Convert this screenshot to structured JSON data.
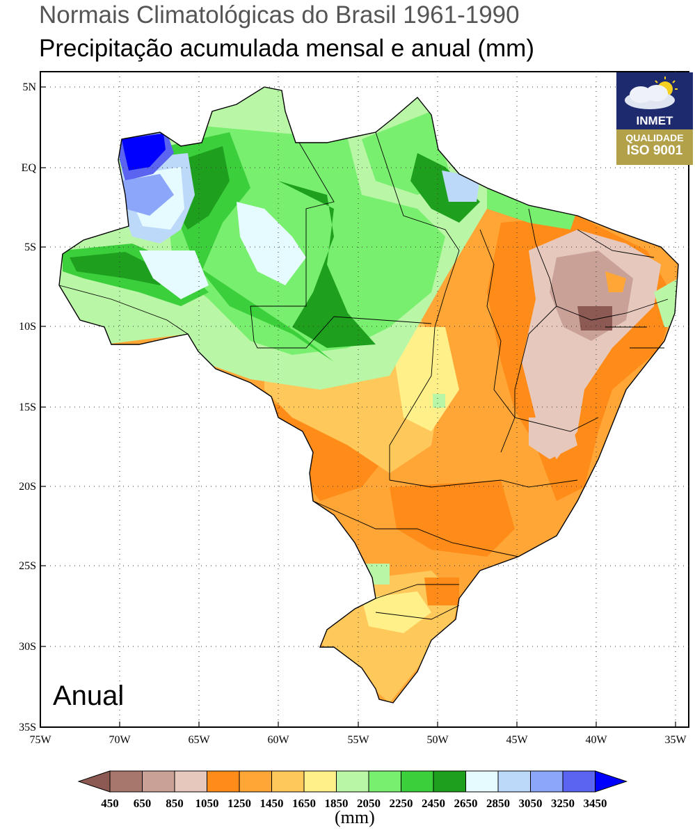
{
  "title": "Normais Climatológicas do Brasil 1961-1990",
  "subtitle": "Precipitação acumulada mensal e anual (mm)",
  "panel_label": "Anual",
  "logo": {
    "name": "INMET",
    "line1": "QUALIDADE",
    "line2": "ISO 9001"
  },
  "axes": {
    "lat_ticks": [
      "5N",
      "EQ",
      "5S",
      "10S",
      "15S",
      "20S",
      "25S",
      "30S",
      "35S"
    ],
    "lon_ticks": [
      "75W",
      "70W",
      "65W",
      "60W",
      "55W",
      "50W",
      "45W",
      "40W",
      "35W"
    ]
  },
  "colorbar": {
    "unit": "(mm)",
    "labels": [
      "450",
      "650",
      "850",
      "1050",
      "1250",
      "1450",
      "1650",
      "1850",
      "2050",
      "2250",
      "2450",
      "2650",
      "2850",
      "3050",
      "3250",
      "3450"
    ],
    "colors": [
      "#8c5a52",
      "#a8776c",
      "#c9a197",
      "#e6c8bd",
      "#ff8c19",
      "#ffa637",
      "#ffc85a",
      "#fff08a",
      "#b9f7a6",
      "#78ef6e",
      "#3ccf3c",
      "#1ea01e",
      "#e6fbff",
      "#bcd9fa",
      "#8ca6fa",
      "#5a64f0",
      "#0000ff"
    ]
  },
  "colors": {
    "ocean": "#ffffff",
    "border": "#000000",
    "gridline": "#333333"
  }
}
